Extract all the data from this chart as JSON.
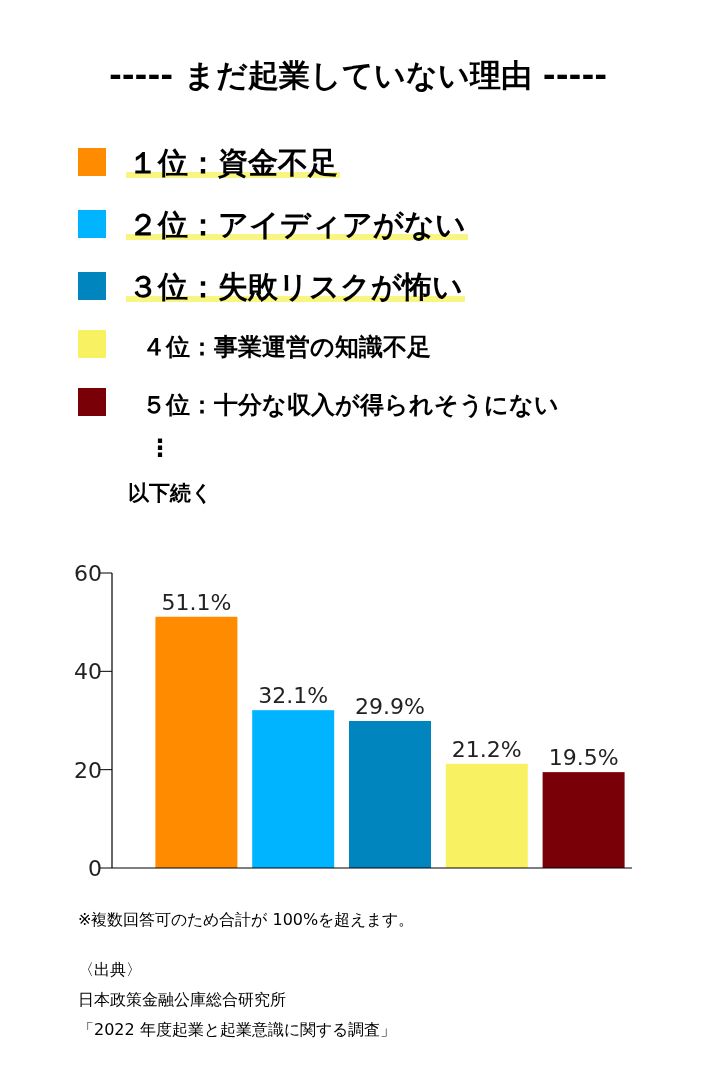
{
  "chart_data": {
    "type": "bar",
    "title": "----- まだ起業していない理由 -----",
    "categories": [
      null,
      null,
      null,
      null,
      null
    ],
    "series": [
      {
        "name": "１位：資金不足",
        "color": "#ff8c00",
        "values": [
          51.1,
          null,
          null,
          null,
          null
        ],
        "value_labels": [
          "51.1%",
          null,
          null,
          null,
          null
        ]
      },
      {
        "name": "２位：アイディアがない",
        "color": "#00b4ff",
        "values": [
          null,
          32.1,
          null,
          null,
          null
        ],
        "value_labels": [
          null,
          "32.1%",
          null,
          null,
          null
        ]
      },
      {
        "name": "３位：失敗リスクが怖い",
        "color": "#0085bf",
        "values": [
          null,
          null,
          29.9,
          null,
          null
        ],
        "value_labels": [
          null,
          null,
          "29.9%",
          null,
          null
        ]
      },
      {
        "name": "４位：事業運営の知識不足",
        "color": "#f8f262",
        "values": [
          null,
          null,
          null,
          21.2,
          null
        ],
        "value_labels": [
          null,
          null,
          null,
          "21.2%",
          null
        ]
      },
      {
        "name": "５位：十分な収入が得られそうにない",
        "color": "#7a0008",
        "values": [
          null,
          null,
          null,
          null,
          19.5
        ],
        "value_labels": [
          null,
          null,
          null,
          null,
          "19.5%"
        ]
      }
    ],
    "ylim": [
      0,
      60
    ],
    "yticks": [
      0,
      20,
      40,
      60
    ],
    "legend": "top",
    "annotations": [
      "⋮",
      "以下続く",
      "※複数回答可のため合計が 100%を超えます。",
      "〈出典〉",
      "日本政策金融公庫総合研究所",
      "「2022 年度起業と起業意識に関する調査」"
    ]
  }
}
